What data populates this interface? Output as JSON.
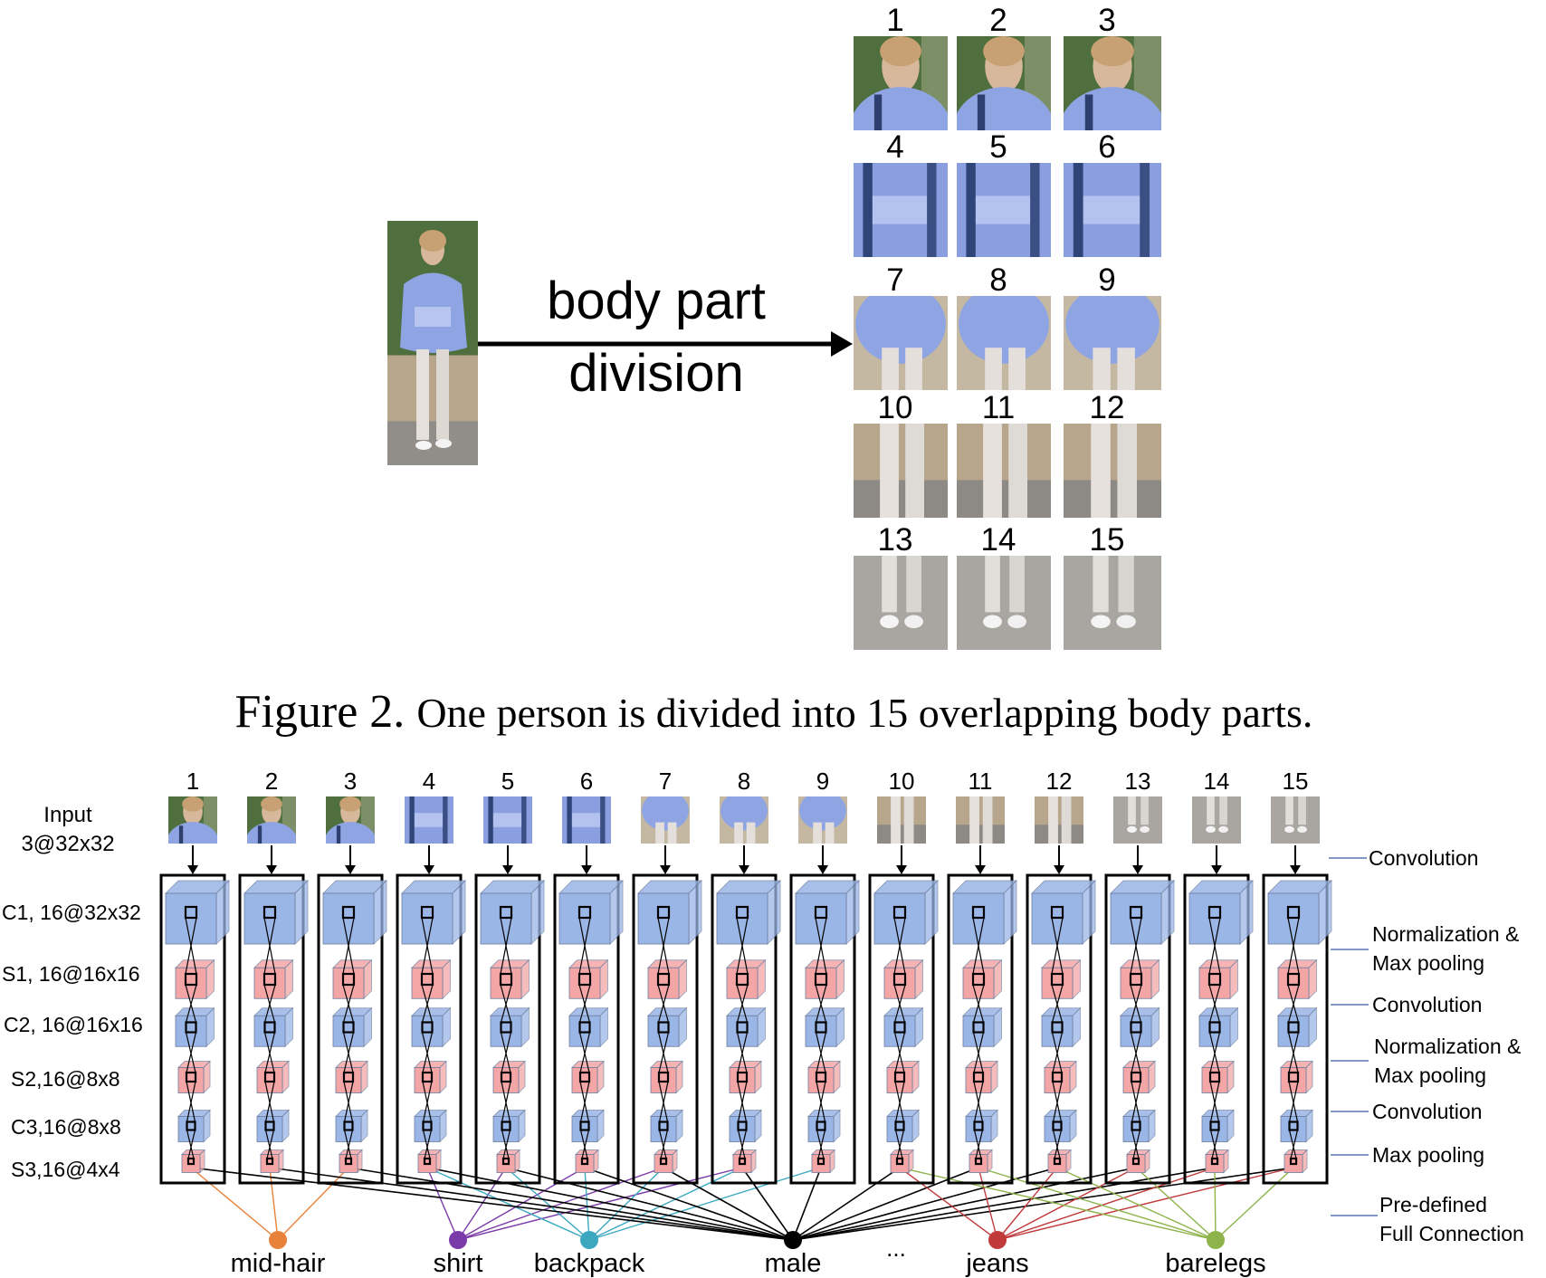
{
  "figure2": {
    "division_label_line1": "body part",
    "division_label_line2": "division",
    "part_numbers": [
      "1",
      "2",
      "3",
      "4",
      "5",
      "6",
      "7",
      "8",
      "9",
      "10",
      "11",
      "12",
      "13",
      "14",
      "15"
    ],
    "caption_prefix": "Figure 2.",
    "caption_text": "One person is divided into 15 overlapping body parts."
  },
  "network": {
    "input_label_line1": "Input",
    "input_label_line2": "3@32x32",
    "column_numbers": [
      "1",
      "2",
      "3",
      "4",
      "5",
      "6",
      "7",
      "8",
      "9",
      "10",
      "11",
      "12",
      "13",
      "14",
      "15"
    ],
    "layer_labels": [
      "C1, 16@32x32",
      "S1, 16@16x16",
      "C2, 16@16x16",
      "S2,16@8x8",
      "C3,16@8x8",
      "S3,16@4x4"
    ],
    "operation_labels": [
      {
        "line1": "Convolution",
        "line2": ""
      },
      {
        "line1": "Normalization &",
        "line2": "Max pooling"
      },
      {
        "line1": "Convolution",
        "line2": ""
      },
      {
        "line1": "Normalization &",
        "line2": "Max pooling"
      },
      {
        "line1": "Convolution",
        "line2": ""
      },
      {
        "line1": "Max pooling",
        "line2": ""
      },
      {
        "line1": "Pre-defined",
        "line2": "Full Connection"
      }
    ],
    "attributes": [
      {
        "name": "mid-hair",
        "color": "#e8823a",
        "parts": [
          1,
          2,
          3
        ]
      },
      {
        "name": "shirt",
        "color": "#7a3aa8",
        "parts": [
          4,
          5,
          6,
          7,
          8
        ]
      },
      {
        "name": "backpack",
        "color": "#3ba8c0",
        "parts": [
          4,
          5,
          6,
          7,
          8,
          9
        ]
      },
      {
        "name": "male",
        "color": "#000000",
        "parts": [
          1,
          2,
          3,
          4,
          5,
          6,
          7,
          8,
          9,
          10,
          11,
          12,
          13,
          14,
          15
        ]
      },
      {
        "name": "jeans",
        "color": "#c0393b",
        "parts": [
          10,
          11,
          12,
          13,
          14,
          15
        ]
      },
      {
        "name": "barelegs",
        "color": "#8db34a",
        "parts": [
          10,
          11,
          12,
          13,
          14,
          15
        ]
      }
    ],
    "ellipsis": "..."
  },
  "colors": {
    "conv_block": "#9ab6e6",
    "pool_block": "#f4a6a6",
    "box_border": "#000000",
    "guide_line": "#5a73b8",
    "jacket": "#8fa4e3",
    "pants": "#d9d2cc",
    "foliage": "#5c7a46",
    "ground": "#b9a88f"
  }
}
